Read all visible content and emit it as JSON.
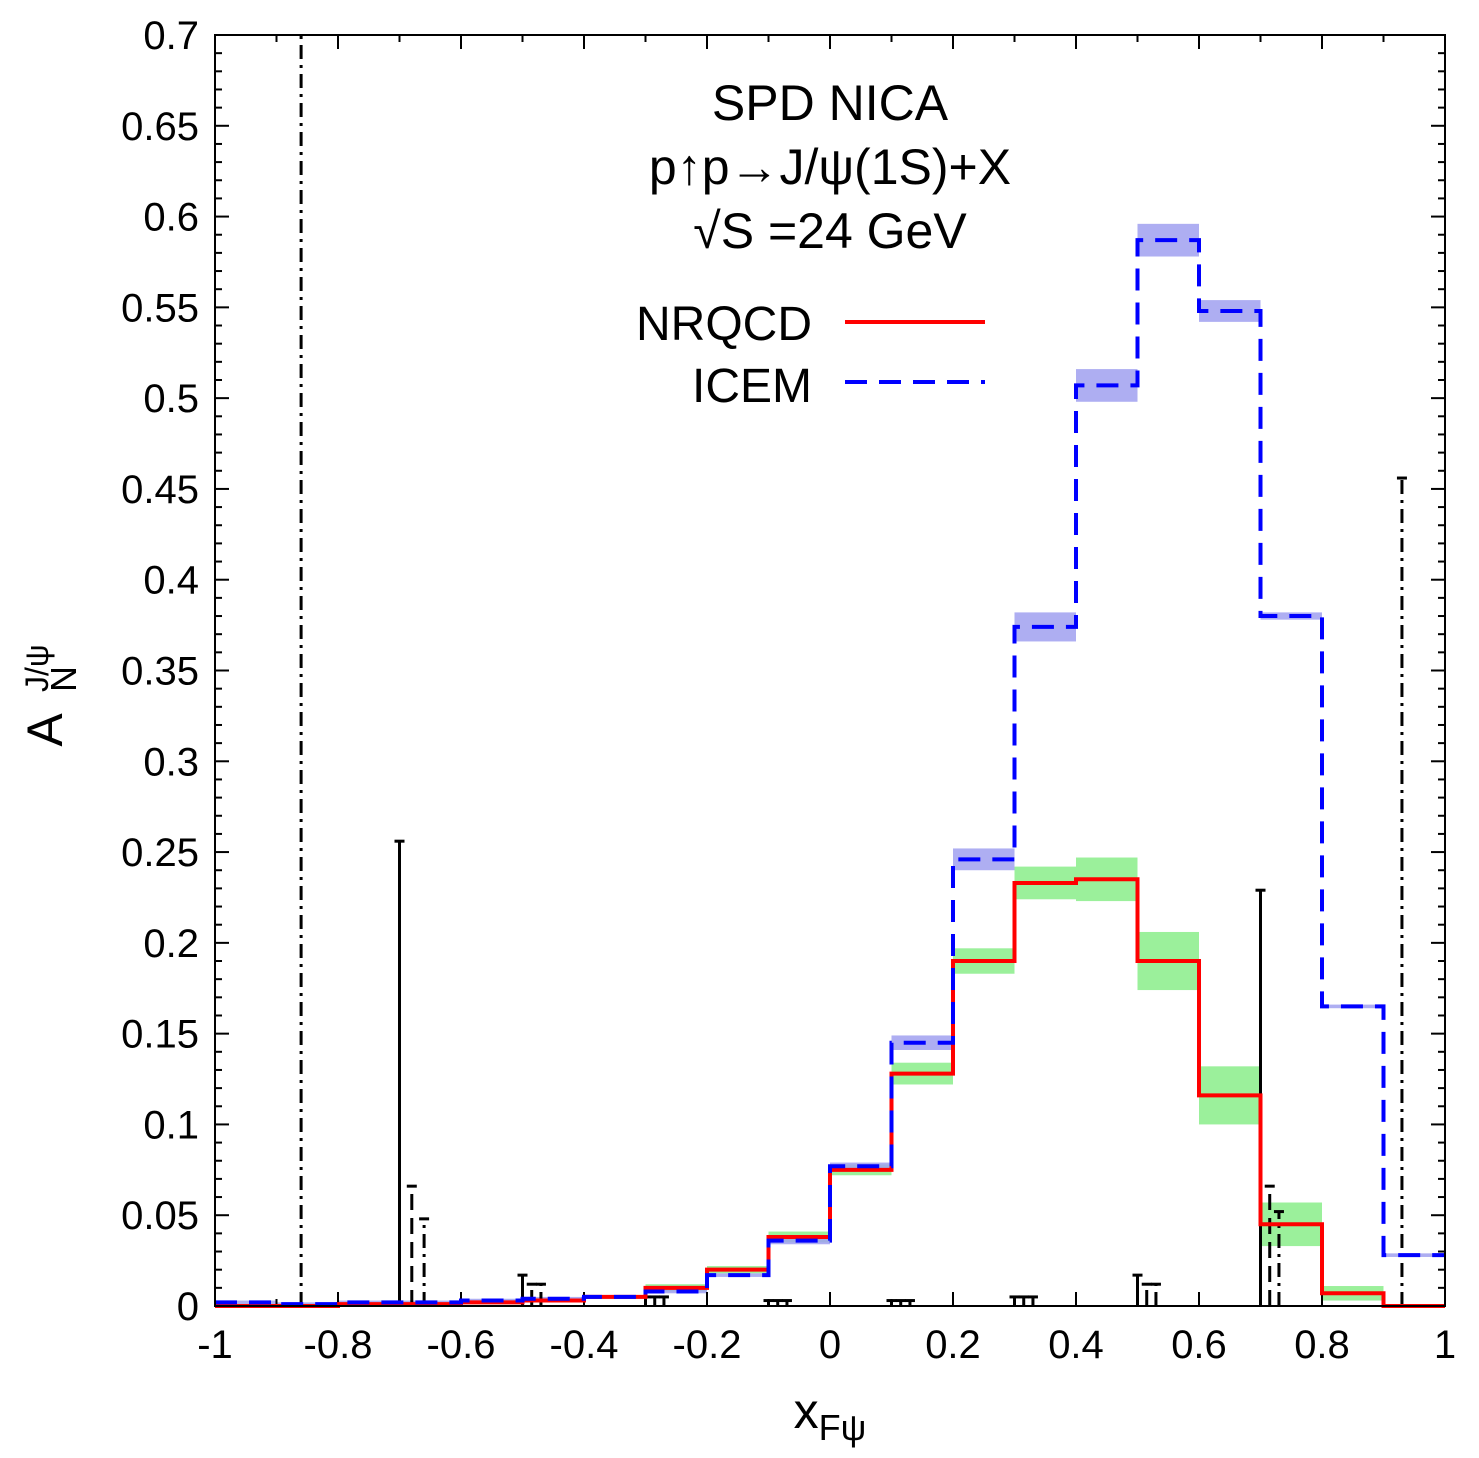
{
  "chart_data": {
    "type": "step",
    "title_lines": [
      "SPD NICA",
      "p↑p→J/ψ(1S)+X",
      "√S =24 GeV"
    ],
    "xlabel_main": "x",
    "xlabel_sub": "Fψ",
    "ylabel_main": "A",
    "ylabel_sub": "N",
    "ylabel_sup": "J/ψ",
    "xlim": [
      -1,
      1
    ],
    "ylim": [
      0,
      0.7
    ],
    "x_ticks": [
      "-1",
      "-0.8",
      "-0.6",
      "-0.4",
      "-0.2",
      "0",
      "0.2",
      "0.4",
      "0.6",
      "0.8",
      "1"
    ],
    "y_ticks": [
      "0",
      "0.05",
      "0.1",
      "0.15",
      "0.2",
      "0.25",
      "0.3",
      "0.35",
      "0.4",
      "0.45",
      "0.5",
      "0.55",
      "0.6",
      "0.65",
      "0.7"
    ],
    "bin_edges": [
      -1,
      -0.9,
      -0.8,
      -0.7,
      -0.6,
      -0.5,
      -0.4,
      -0.3,
      -0.2,
      -0.1,
      0,
      0.1,
      0.2,
      0.3,
      0.4,
      0.5,
      0.6,
      0.7,
      0.8,
      0.9,
      1
    ],
    "series": [
      {
        "name": "NRQCD",
        "color": "#ff0000",
        "band_color": "#90ee90",
        "values": [
          0.0,
          0.0,
          0.001,
          0.001,
          0.002,
          0.003,
          0.005,
          0.01,
          0.02,
          0.038,
          0.075,
          0.128,
          0.19,
          0.233,
          0.235,
          0.19,
          0.116,
          0.045,
          0.007,
          0.0
        ],
        "band_halfwidth": [
          0.001,
          0.001,
          0.001,
          0.001,
          0.001,
          0.001,
          0.001,
          0.002,
          0.002,
          0.003,
          0.003,
          0.006,
          0.007,
          0.009,
          0.012,
          0.016,
          0.016,
          0.012,
          0.004,
          0.001
        ]
      },
      {
        "name": "ICEM",
        "color": "#0000ff",
        "band_color": "#a0a0f0",
        "values": [
          0.002,
          0.001,
          0.002,
          0.002,
          0.003,
          0.004,
          0.005,
          0.008,
          0.017,
          0.036,
          0.077,
          0.145,
          0.246,
          0.374,
          0.507,
          0.587,
          0.548,
          0.38,
          0.165,
          0.028
        ],
        "band_halfwidth": [
          0.001,
          0.001,
          0.001,
          0.001,
          0.001,
          0.001,
          0.001,
          0.001,
          0.001,
          0.002,
          0.002,
          0.004,
          0.006,
          0.008,
          0.009,
          0.009,
          0.006,
          0.002,
          0.001,
          0.001
        ]
      }
    ],
    "error_bars": [
      {
        "x": -0.86,
        "y": 0.0,
        "err": 0.7,
        "style": "dashdot"
      },
      {
        "x": -0.7,
        "y": 0.0,
        "err": 0.256,
        "style": "solid"
      },
      {
        "x": -0.68,
        "y": 0.0,
        "err": 0.066,
        "style": "dashed"
      },
      {
        "x": -0.66,
        "y": 0.0,
        "err": 0.048,
        "style": "dashdot"
      },
      {
        "x": -0.5,
        "y": 0.0,
        "err": 0.017,
        "style": "solid"
      },
      {
        "x": -0.485,
        "y": 0.0,
        "err": 0.012,
        "style": "dashed"
      },
      {
        "x": -0.47,
        "y": 0.0,
        "err": 0.012,
        "style": "dashdot"
      },
      {
        "x": -0.3,
        "y": 0.0,
        "err": 0.005,
        "style": "solid"
      },
      {
        "x": -0.285,
        "y": 0.0,
        "err": 0.005,
        "style": "dashed"
      },
      {
        "x": -0.27,
        "y": 0.0,
        "err": 0.005,
        "style": "dashdot"
      },
      {
        "x": -0.1,
        "y": 0.0,
        "err": 0.003,
        "style": "solid"
      },
      {
        "x": -0.085,
        "y": 0.0,
        "err": 0.003,
        "style": "dashed"
      },
      {
        "x": -0.07,
        "y": 0.0,
        "err": 0.003,
        "style": "dashdot"
      },
      {
        "x": 0.1,
        "y": 0.0,
        "err": 0.003,
        "style": "solid"
      },
      {
        "x": 0.115,
        "y": 0.0,
        "err": 0.003,
        "style": "dashed"
      },
      {
        "x": 0.13,
        "y": 0.0,
        "err": 0.003,
        "style": "dashdot"
      },
      {
        "x": 0.3,
        "y": 0.0,
        "err": 0.005,
        "style": "solid"
      },
      {
        "x": 0.315,
        "y": 0.0,
        "err": 0.005,
        "style": "dashed"
      },
      {
        "x": 0.33,
        "y": 0.0,
        "err": 0.005,
        "style": "dashdot"
      },
      {
        "x": 0.5,
        "y": 0.0,
        "err": 0.017,
        "style": "solid"
      },
      {
        "x": 0.515,
        "y": 0.0,
        "err": 0.012,
        "style": "dashed"
      },
      {
        "x": 0.53,
        "y": 0.0,
        "err": 0.012,
        "style": "dashdot"
      },
      {
        "x": 0.7,
        "y": 0.0,
        "err": 0.229,
        "style": "solid"
      },
      {
        "x": 0.715,
        "y": 0.0,
        "err": 0.066,
        "style": "dashed"
      },
      {
        "x": 0.73,
        "y": 0.0,
        "err": 0.052,
        "style": "dashdot"
      },
      {
        "x": 0.93,
        "y": 0.0,
        "err": 0.456,
        "style": "dashdot"
      }
    ]
  }
}
